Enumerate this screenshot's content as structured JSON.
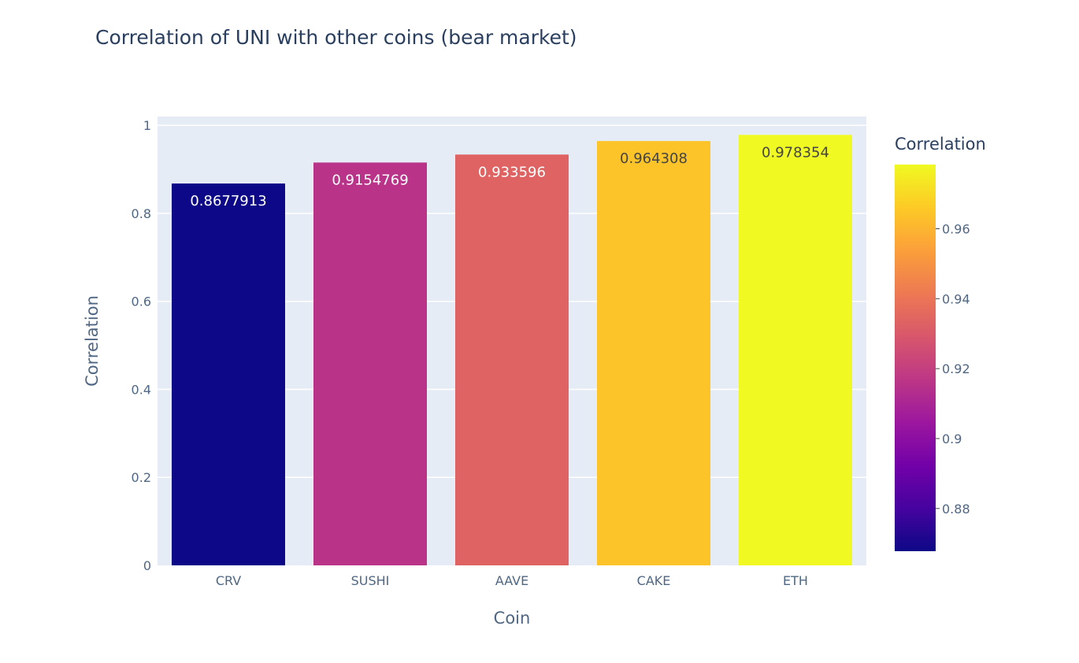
{
  "chart_data": {
    "type": "bar",
    "title": "Correlation of UNI with other coins (bear market)",
    "xlabel": "Coin",
    "ylabel": "Correlation",
    "categories": [
      "CRV",
      "SUSHI",
      "AAVE",
      "CAKE",
      "ETH"
    ],
    "values": [
      0.8677913,
      0.9154769,
      0.933596,
      0.964308,
      0.978354
    ],
    "data_labels": [
      "0.8677913",
      "0.9154769",
      "0.933596",
      "0.964308",
      "0.978354"
    ],
    "y_ticks": [
      "0",
      "0.2",
      "0.4",
      "0.6",
      "0.8",
      "1"
    ],
    "y_tick_values": [
      0,
      0.2,
      0.4,
      0.6,
      0.8,
      1
    ],
    "ylim": [
      0,
      1.02
    ],
    "grid": true,
    "plot_background": "#e5ecf6",
    "colorbar": {
      "title": "Correlation",
      "range": [
        0.8677913,
        0.978354
      ],
      "ticks": [
        "0.88",
        "0.9",
        "0.92",
        "0.94",
        "0.96"
      ],
      "tick_values": [
        0.88,
        0.9,
        0.92,
        0.94,
        0.96
      ],
      "colorscale": [
        "#0d0887",
        "#46039f",
        "#7201a8",
        "#9c179e",
        "#bd3786",
        "#d8576b",
        "#ed7953",
        "#fb9f3a",
        "#fdca26",
        "#f0f921"
      ]
    }
  }
}
